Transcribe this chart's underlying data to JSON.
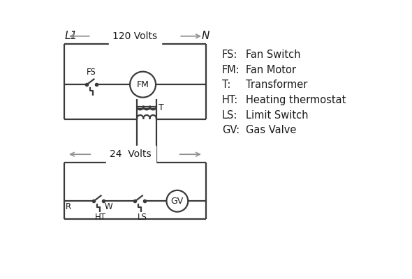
{
  "bg_color": "#ffffff",
  "line_color": "#3a3a3a",
  "arrow_color": "#909090",
  "text_color": "#1a1a1a",
  "legend": [
    [
      "FS:",
      "Fan Switch"
    ],
    [
      "FM:",
      "Fan Motor"
    ],
    [
      "T:",
      "Transformer"
    ],
    [
      "HT:",
      "Heating thermostat"
    ],
    [
      "LS:",
      "Limit Switch"
    ],
    [
      "GV:",
      "Gas Valve"
    ]
  ],
  "L1_label": "L1",
  "N_label": "N",
  "volts120": "120 Volts",
  "volts24": "24  Volts",
  "lw": 1.6
}
